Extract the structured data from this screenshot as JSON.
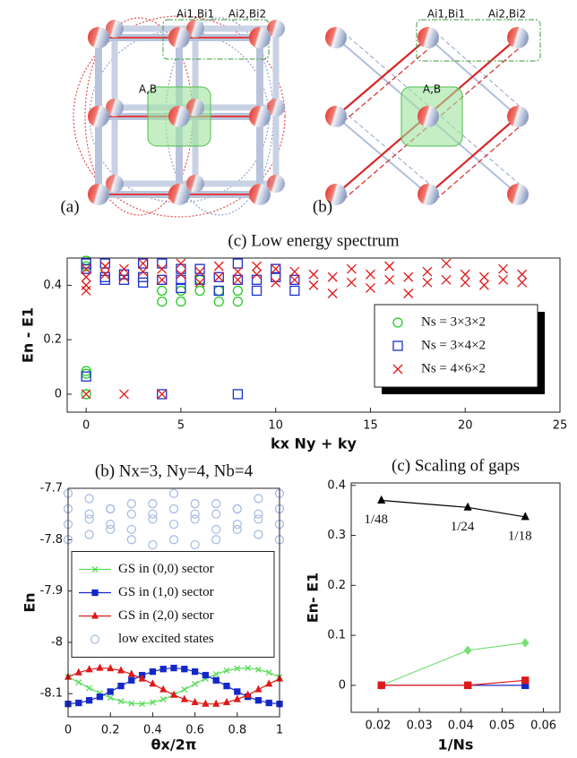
{
  "diagrams": {
    "a": {
      "label": "(a)",
      "cell_labels": [
        "Ai1,Bi1",
        "Ai2,Bi2"
      ],
      "site_label": "A,B"
    },
    "b": {
      "label": "(b)",
      "cell_labels": [
        "Ai1,Bi1",
        "Ai2,Bi2"
      ],
      "site_label": "A,B"
    }
  },
  "chart_data": [
    {
      "type": "scatter",
      "title": "(c) Low energy spectrum",
      "x_label": "kx Ny + ky",
      "y_label": "En - E1",
      "xlim": [
        -1,
        25
      ],
      "xticks": [
        0,
        5,
        10,
        15,
        20,
        25
      ],
      "ylim": [
        -0.066,
        0.5
      ],
      "yticks": [
        0,
        0.2,
        0.4
      ],
      "legend": "lower right",
      "series": [
        {
          "name": "Ns = 3×3×2",
          "color": "#22cc22",
          "marker": "open-circle",
          "x": [
            0,
            0,
            0,
            0,
            0,
            4,
            4,
            5,
            5,
            6,
            6,
            7,
            7,
            8,
            8
          ],
          "values": [
            0,
            0.075,
            0.085,
            0.47,
            0.49,
            0.34,
            0.38,
            0.34,
            0.38,
            0.38,
            0.42,
            0.34,
            0.38,
            0.34,
            0.38
          ]
        },
        {
          "name": "Ns = 3×4×2",
          "color": "#1a2fd0",
          "marker": "open-square",
          "x": [
            0,
            0,
            0,
            1,
            1,
            1,
            2,
            2,
            3,
            3,
            3,
            4,
            4,
            4,
            5,
            5,
            5,
            6,
            6,
            7,
            7,
            8,
            8,
            8,
            9,
            9,
            10,
            10,
            11,
            11
          ],
          "values": [
            0.065,
            0.46,
            0.48,
            0.42,
            0.43,
            0.48,
            0.42,
            0.44,
            0.41,
            0.43,
            0.48,
            0,
            0.42,
            0.48,
            0.39,
            0.42,
            0.46,
            0.42,
            0.46,
            0.38,
            0.43,
            0,
            0.42,
            0.48,
            0.38,
            0.42,
            0.43,
            0.46,
            0.38,
            0.42
          ]
        },
        {
          "name": "Ns = 4×6×2",
          "color": "#e01818",
          "marker": "cross",
          "x": [
            0,
            0,
            0,
            0,
            0,
            2,
            4,
            1,
            1,
            2,
            2,
            3,
            3,
            4,
            4,
            5,
            5,
            6,
            6,
            7,
            7,
            8,
            8,
            9,
            9,
            10,
            10,
            11,
            11,
            12,
            12,
            13,
            13,
            14,
            14,
            15,
            15,
            16,
            16,
            17,
            17,
            18,
            18,
            19,
            19,
            20,
            20,
            21,
            21,
            22,
            22,
            23,
            23
          ],
          "values": [
            0,
            0.38,
            0.4,
            0.43,
            0.46,
            0,
            0,
            0.44,
            0.47,
            0.43,
            0.46,
            0.45,
            0.48,
            0.42,
            0.46,
            0.44,
            0.48,
            0.41,
            0.45,
            0.43,
            0.47,
            0.42,
            0.45,
            0.44,
            0.47,
            0.41,
            0.46,
            0.42,
            0.45,
            0.4,
            0.44,
            0.37,
            0.43,
            0.41,
            0.46,
            0.39,
            0.44,
            0.42,
            0.47,
            0.37,
            0.43,
            0.41,
            0.45,
            0.42,
            0.48,
            0.41,
            0.44,
            0.4,
            0.43,
            0.42,
            0.46,
            0.41,
            0.44
          ]
        }
      ]
    },
    {
      "type": "line",
      "title": "(b) Nx=3, Ny=4, Nb=4",
      "x_label": "θx/2π",
      "y_label": "En",
      "xlim": [
        0,
        1
      ],
      "xticks": [
        0,
        0.2,
        0.4,
        0.6,
        0.8,
        1
      ],
      "ylim": [
        -8.145,
        -7.7
      ],
      "yticks": [
        -7.7,
        -7.8,
        -7.9,
        -8,
        -8.1
      ],
      "legend": "center left",
      "series": [
        {
          "name": "GS in (0,0) sector",
          "color": "#55dd55",
          "marker": "cross",
          "line": true,
          "x": [
            0,
            0.05,
            0.1,
            0.15,
            0.2,
            0.25,
            0.3,
            0.35,
            0.4,
            0.45,
            0.5,
            0.55,
            0.6,
            0.65,
            0.7,
            0.75,
            0.8,
            0.85,
            0.9,
            0.95,
            1
          ],
          "values": [
            -8.0675,
            -8.078,
            -8.089,
            -8.099,
            -8.108,
            -8.115,
            -8.119,
            -8.12,
            -8.117,
            -8.111,
            -8.1025,
            -8.092,
            -8.081,
            -8.071,
            -8.062,
            -8.055,
            -8.051,
            -8.05,
            -8.053,
            -8.059,
            -8.0675
          ]
        },
        {
          "name": "GS in (1,0) sector",
          "color": "#1428c8",
          "marker": "square",
          "line": true,
          "x": [
            0,
            0.05,
            0.1,
            0.15,
            0.2,
            0.25,
            0.3,
            0.35,
            0.4,
            0.45,
            0.5,
            0.55,
            0.6,
            0.65,
            0.7,
            0.75,
            0.8,
            0.85,
            0.9,
            0.95,
            1
          ],
          "values": [
            -8.12,
            -8.118,
            -8.113,
            -8.106,
            -8.096,
            -8.085,
            -8.074,
            -8.064,
            -8.057,
            -8.052,
            -8.05,
            -8.052,
            -8.057,
            -8.064,
            -8.074,
            -8.085,
            -8.096,
            -8.106,
            -8.113,
            -8.118,
            -8.12
          ]
        },
        {
          "name": "GS in (2,0) sector",
          "color": "#e01818",
          "marker": "triangle",
          "line": true,
          "x": [
            0,
            0.05,
            0.1,
            0.15,
            0.2,
            0.25,
            0.3,
            0.35,
            0.4,
            0.45,
            0.5,
            0.55,
            0.6,
            0.65,
            0.7,
            0.75,
            0.8,
            0.85,
            0.9,
            0.95,
            1
          ],
          "values": [
            -8.0675,
            -8.059,
            -8.053,
            -8.05,
            -8.051,
            -8.055,
            -8.062,
            -8.071,
            -8.081,
            -8.092,
            -8.1025,
            -8.111,
            -8.117,
            -8.12,
            -8.12,
            -8.117,
            -8.111,
            -8.1025,
            -8.092,
            -8.081,
            -8.071
          ]
        },
        {
          "name": "low excited states",
          "color": "#a9bde2",
          "marker": "open-circle",
          "line": false,
          "x": [
            0,
            0.1,
            0.2,
            0.3,
            0.4,
            0.5,
            0.6,
            0.7,
            0.8,
            0.9,
            1,
            0,
            0.1,
            0.2,
            0.3,
            0.4,
            0.5,
            0.6,
            0.7,
            0.8,
            0.9,
            1,
            0,
            0.1,
            0.2,
            0.3,
            0.4,
            0.5,
            0.6,
            0.7,
            0.8,
            0.9,
            1,
            0,
            0.1,
            0.2,
            0.3,
            0.4,
            0.5,
            0.6,
            0.7,
            0.8,
            0.9,
            1
          ],
          "values": [
            -7.71,
            -7.72,
            -7.74,
            -7.75,
            -7.73,
            -7.71,
            -7.73,
            -7.75,
            -7.74,
            -7.72,
            -7.71,
            -7.74,
            -7.75,
            -7.77,
            -7.78,
            -7.76,
            -7.74,
            -7.76,
            -7.78,
            -7.77,
            -7.75,
            -7.74,
            -7.77,
            -7.76,
            -7.74,
            -7.73,
            -7.75,
            -7.77,
            -7.75,
            -7.73,
            -7.74,
            -7.76,
            -7.77,
            -7.8,
            -7.79,
            -7.78,
            -7.8,
            -7.81,
            -7.8,
            -7.81,
            -7.8,
            -7.78,
            -7.79,
            -7.8
          ]
        }
      ]
    },
    {
      "type": "line",
      "title": "(c) Scaling of gaps",
      "x_label": "1/Ns",
      "y_label": "En- E1",
      "xlim": [
        0.0135,
        0.064
      ],
      "xticks": [
        0.02,
        0.03,
        0.04,
        0.05,
        0.06
      ],
      "ylim": [
        -0.054,
        0.405
      ],
      "yticks": [
        0,
        0.1,
        0.2,
        0.3,
        0.4
      ],
      "series": [
        {
          "color": "#000000",
          "marker": "triangle",
          "line": true,
          "x": [
            0.0208,
            0.0417,
            0.0556
          ],
          "values": [
            0.37,
            0.356,
            0.337
          ],
          "point_labels": [
            "1/48",
            "1/24",
            "1/18"
          ]
        },
        {
          "color": "#77e077",
          "marker": "diamond",
          "line": true,
          "x": [
            0.0208,
            0.0417,
            0.0556
          ],
          "values": [
            0,
            0.07,
            0.085
          ]
        },
        {
          "color": "#1428c8",
          "marker": "square",
          "line": true,
          "x": [
            0.0208,
            0.0417,
            0.0556
          ],
          "values": [
            0,
            0,
            0
          ]
        },
        {
          "color": "#e01818",
          "marker": "square",
          "line": true,
          "x": [
            0.0208,
            0.0417,
            0.0556
          ],
          "values": [
            0,
            0,
            0.01
          ]
        }
      ]
    }
  ]
}
